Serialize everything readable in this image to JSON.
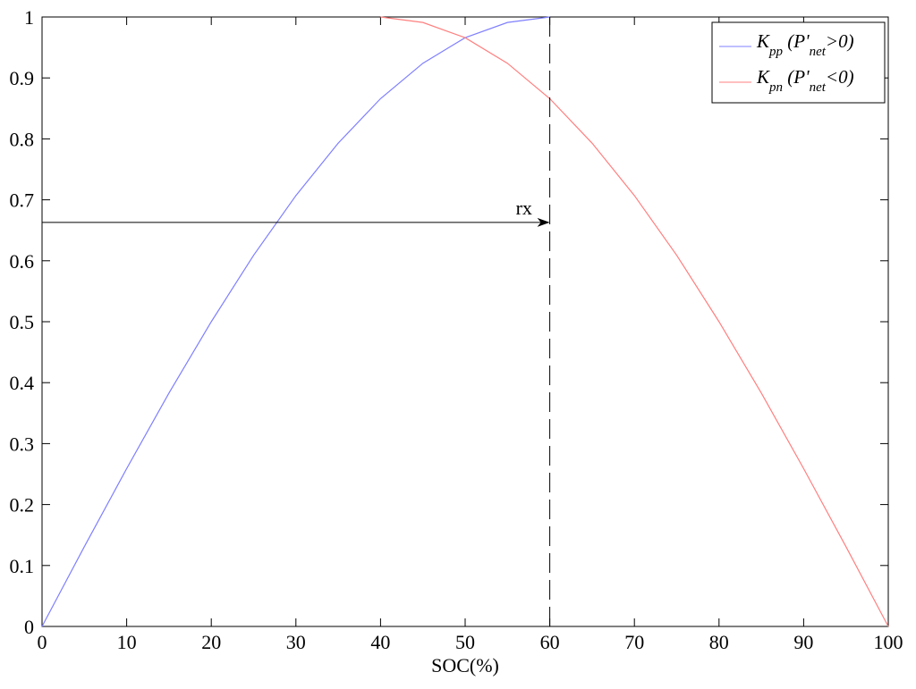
{
  "chart_data": {
    "type": "line",
    "title": "",
    "xlabel": "SOC(%)",
    "ylabel": "",
    "xlim": [
      0,
      100
    ],
    "ylim": [
      0,
      1
    ],
    "x_ticks": [
      0,
      10,
      20,
      30,
      40,
      50,
      60,
      70,
      80,
      90,
      100
    ],
    "y_ticks": [
      0,
      0.1,
      0.2,
      0.3,
      0.4,
      0.5,
      0.6,
      0.7,
      0.8,
      0.9,
      1
    ],
    "x_tick_labels": [
      "0",
      "10",
      "20",
      "30",
      "40",
      "50",
      "60",
      "70",
      "80",
      "90",
      "100"
    ],
    "y_tick_labels": [
      "0",
      "0.1",
      "0.2",
      "0.3",
      "0.4",
      "0.5",
      "0.6",
      "0.7",
      "0.8",
      "0.9",
      "1"
    ],
    "grid": false,
    "legend_position": "top-right",
    "series": [
      {
        "name": "K_pp (P'_net>0)",
        "color": "#7f7fff",
        "x": [
          0,
          5,
          10,
          15,
          20,
          25,
          30,
          35,
          40,
          45,
          50,
          55,
          60
        ],
        "y": [
          0,
          0.131,
          0.259,
          0.383,
          0.5,
          0.609,
          0.707,
          0.793,
          0.866,
          0.924,
          0.966,
          0.991,
          1
        ]
      },
      {
        "name": "K_pn (P'_net<0)",
        "color": "#ff7f7f",
        "x": [
          40,
          45,
          50,
          55,
          60,
          65,
          70,
          75,
          80,
          85,
          90,
          95,
          100
        ],
        "y": [
          1,
          0.991,
          0.966,
          0.924,
          0.866,
          0.793,
          0.707,
          0.609,
          0.5,
          0.383,
          0.259,
          0.131,
          0
        ]
      }
    ],
    "legend": [
      {
        "main": "K",
        "sub": "pp",
        "rest_a": " (P'",
        "sub2": "net",
        "rest_b": ">0)"
      },
      {
        "main": "K",
        "sub": "pn",
        "rest_a": " (P'",
        "sub2": "net",
        "rest_b": "<0)"
      }
    ],
    "annotations": {
      "vertical_dashed_x": 60,
      "arrow": {
        "x_from": 0,
        "x_to": 60,
        "y": 0.663
      },
      "arrow_label": "rx"
    }
  }
}
